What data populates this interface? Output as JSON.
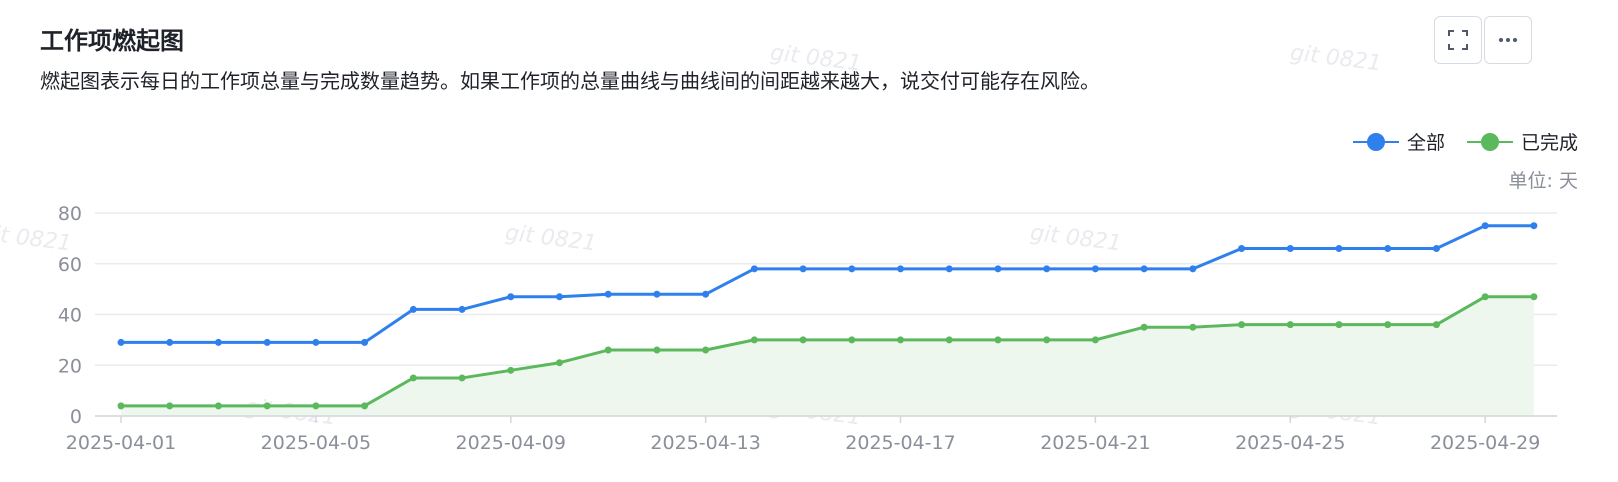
{
  "header": {
    "title": "工作项燃起图",
    "subtitle": "燃起图表示每日的工作项总量与完成数量趋势。如果工作项的总量曲线与曲线间的间距越来越大，说交付可能存在风险。"
  },
  "toolbar": {
    "fullscreen_icon": "fullscreen-icon",
    "more_icon": "more-icon"
  },
  "watermark_text": "git 0821",
  "unit_label": "单位: 天",
  "colors": {
    "total": "#2f80ed",
    "completed": "#5cb85c",
    "completed_area": "#eef7ee",
    "grid": "#e9ebef",
    "axis_text": "#8a8f99"
  },
  "chart_data": {
    "type": "line",
    "x": [
      "2025-04-01",
      "2025-04-02",
      "2025-04-03",
      "2025-04-04",
      "2025-04-05",
      "2025-04-06",
      "2025-04-07",
      "2025-04-08",
      "2025-04-09",
      "2025-04-10",
      "2025-04-11",
      "2025-04-12",
      "2025-04-13",
      "2025-04-14",
      "2025-04-15",
      "2025-04-16",
      "2025-04-17",
      "2025-04-18",
      "2025-04-19",
      "2025-04-20",
      "2025-04-21",
      "2025-04-22",
      "2025-04-23",
      "2025-04-24",
      "2025-04-25",
      "2025-04-26",
      "2025-04-27",
      "2025-04-28",
      "2025-04-29",
      "2025-04-30"
    ],
    "x_tick_labels": [
      "2025-04-01",
      "2025-04-05",
      "2025-04-09",
      "2025-04-13",
      "2025-04-17",
      "2025-04-21",
      "2025-04-25",
      "2025-04-29"
    ],
    "series": [
      {
        "name": "全部",
        "values": [
          29,
          29,
          29,
          29,
          29,
          29,
          42,
          42,
          47,
          47,
          48,
          48,
          48,
          58,
          58,
          58,
          58,
          58,
          58,
          58,
          58,
          58,
          58,
          66,
          66,
          66,
          66,
          66,
          75,
          75
        ]
      },
      {
        "name": "已完成",
        "values": [
          4,
          4,
          4,
          4,
          4,
          4,
          15,
          15,
          18,
          21,
          26,
          26,
          26,
          30,
          30,
          30,
          30,
          30,
          30,
          30,
          30,
          35,
          35,
          36,
          36,
          36,
          36,
          36,
          47,
          47
        ]
      }
    ],
    "ylim": [
      0,
      80
    ],
    "yticks": [
      0,
      20,
      40,
      60,
      80
    ],
    "grid": true,
    "legend": "top-right"
  }
}
